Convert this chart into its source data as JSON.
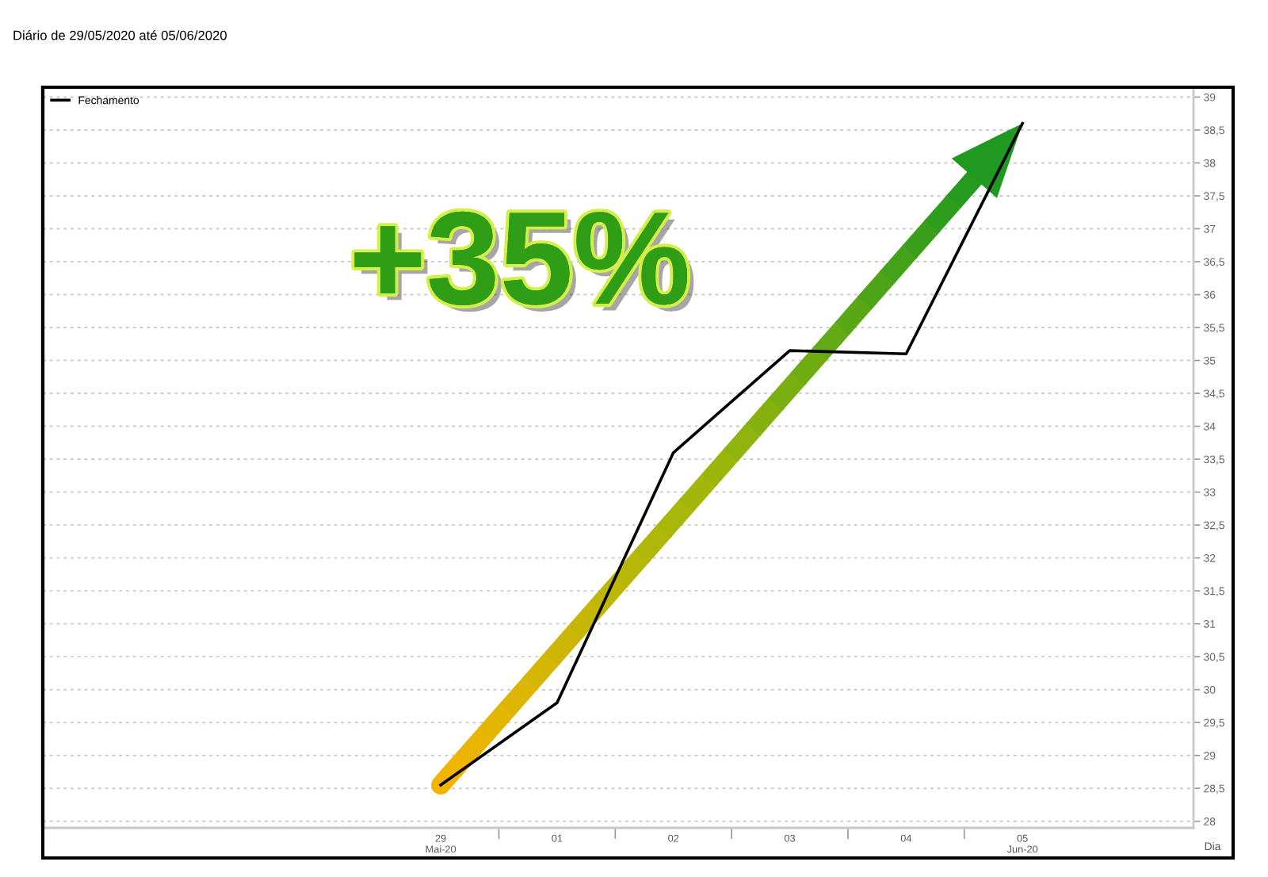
{
  "chart_data": {
    "type": "line",
    "subtitle": "Diário de 29/05/2020 até 05/06/2020",
    "xlabel": "Dia",
    "categories": [
      "29\nMai-20",
      "01",
      "02",
      "03",
      "04",
      "05\nJun-20"
    ],
    "series": [
      {
        "name": "Fechamento",
        "color": "#000000",
        "values": [
          28.55,
          29.8,
          33.6,
          35.15,
          35.1,
          38.6
        ]
      }
    ],
    "ylim": [
      27.9,
      39.15
    ],
    "yticks": [
      28,
      {
        "value": 28.5,
        "label": "28,5"
      },
      29,
      {
        "value": 29.5,
        "label": "29,5"
      },
      30,
      {
        "value": 30.5,
        "label": "30,5"
      },
      31,
      {
        "value": 31.5,
        "label": "31,5"
      },
      32,
      {
        "value": 32.5,
        "label": "32,5"
      },
      33,
      {
        "value": 33.5,
        "label": "33,5"
      },
      34,
      {
        "value": 34.5,
        "label": "34,5"
      },
      35,
      {
        "value": 35.5,
        "label": "35,5"
      },
      36,
      {
        "value": 36.5,
        "label": "36,5"
      },
      37,
      {
        "value": 37.5,
        "label": "37,5"
      },
      38,
      {
        "value": 38.5,
        "label": "38,5"
      },
      39
    ],
    "grid": "y",
    "legend": "top left",
    "annotations": [
      "+35%"
    ]
  }
}
